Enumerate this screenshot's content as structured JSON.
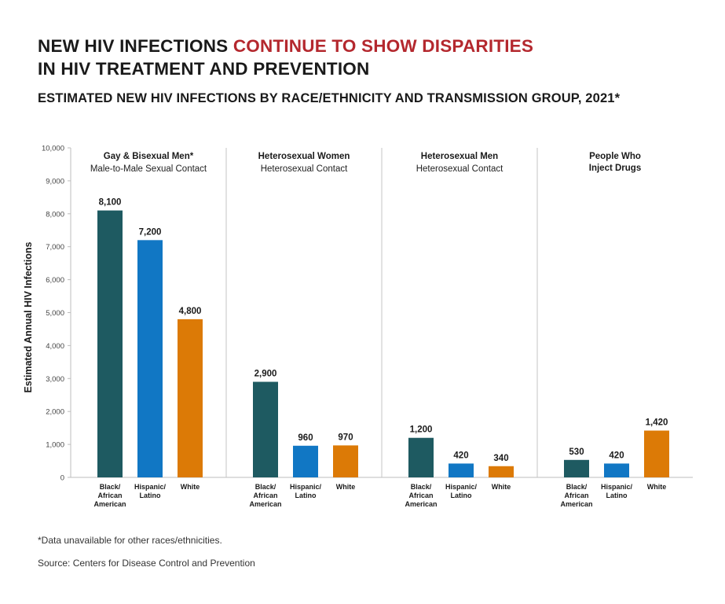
{
  "title": {
    "line1_plain": "NEW HIV INFECTIONS ",
    "line1_accent": "CONTINUE TO SHOW DISPARITIES",
    "line2": "IN HIV TREATMENT AND PREVENTION"
  },
  "subtitle": "ESTIMATED NEW HIV INFECTIONS BY RACE/ETHNICITY AND TRANSMISSION GROUP, 2021*",
  "footnote": "*Data unavailable for other races/ethnicities.",
  "source": "Source: Centers for Disease Control and Prevention",
  "colors": {
    "accent": "#b4282e",
    "black_african_american": "#1e5a61",
    "hispanic_latino": "#1177c4",
    "white": "#dc7a06"
  },
  "chart_data": {
    "type": "bar",
    "ylabel": "Estimated Annual HIV Infections",
    "ylim": [
      0,
      10000
    ],
    "yticks": [
      "0",
      "1,000",
      "2,000",
      "3,000",
      "4,000",
      "5,000",
      "6,000",
      "7,000",
      "8,000",
      "9,000",
      "10,000"
    ],
    "grid": false,
    "categories": [
      "Black/ African American",
      "Hispanic/ Latino",
      "White"
    ],
    "groups": [
      {
        "label": "Gay & Bisexual Men*",
        "sublabel": "Male-to-Male Sexual Contact",
        "values": [
          8100,
          7200,
          4800
        ],
        "value_labels": [
          "8,100",
          "7,200",
          "4,800"
        ]
      },
      {
        "label": "Heterosexual Women",
        "sublabel": "Heterosexual Contact",
        "values": [
          2900,
          960,
          970
        ],
        "value_labels": [
          "2,900",
          "960",
          "970"
        ]
      },
      {
        "label": "Heterosexual Men",
        "sublabel": "Heterosexual Contact",
        "values": [
          1200,
          420,
          340
        ],
        "value_labels": [
          "1,200",
          "420",
          "340"
        ]
      },
      {
        "label": "People Who Inject Drugs",
        "sublabel": "",
        "values": [
          530,
          420,
          1420
        ],
        "value_labels": [
          "530",
          "420",
          "1,420"
        ]
      }
    ]
  }
}
